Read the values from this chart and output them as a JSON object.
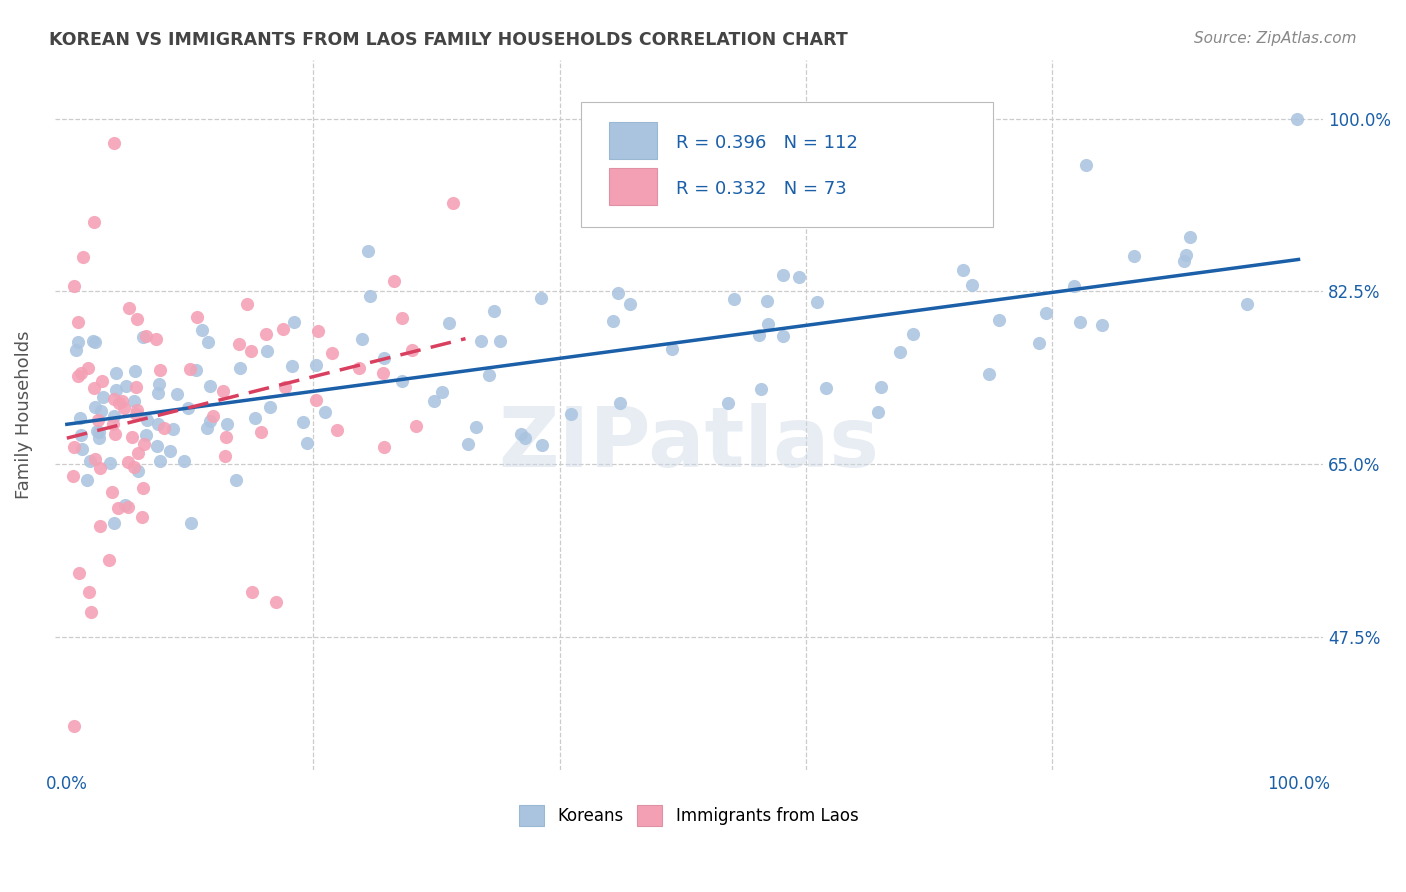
{
  "title": "KOREAN VS IMMIGRANTS FROM LAOS FAMILY HOUSEHOLDS CORRELATION CHART",
  "source": "Source: ZipAtlas.com",
  "ylabel": "Family Households",
  "yticks_val": [
    0.475,
    0.65,
    0.825,
    1.0
  ],
  "ytick_labels": [
    "47.5%",
    "65.0%",
    "82.5%",
    "100.0%"
  ],
  "xtick_vals": [
    0.0,
    0.2,
    0.4,
    0.6,
    0.8,
    1.0
  ],
  "xtick_labels": [
    "0.0%",
    "",
    "",
    "",
    "",
    "100.0%"
  ],
  "xlim": [
    -0.01,
    1.02
  ],
  "ylim": [
    0.34,
    1.06
  ],
  "korean_R": 0.396,
  "korean_N": 112,
  "laos_R": 0.332,
  "laos_N": 73,
  "korean_color": "#aac4e0",
  "laos_color": "#f4a0b4",
  "trend_blue": "#1a5fa8",
  "trend_pink": "#d94060",
  "label_blue": "#1a5fa8",
  "title_color": "#444444",
  "source_color": "#888888",
  "grid_color": "#cccccc",
  "watermark": "ZIPatlas",
  "bg": "#ffffff"
}
